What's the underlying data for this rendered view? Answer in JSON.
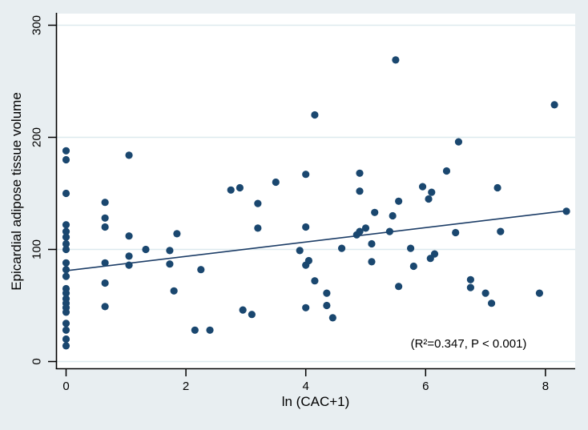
{
  "chart_data": {
    "type": "scatter",
    "title": "",
    "xlabel": "ln (CAC+1)",
    "ylabel": "Epicardial adipose tissue volume",
    "annotation": "(R²=0.347, P < 0.001)",
    "xticks": [
      0,
      2,
      4,
      6,
      8
    ],
    "yticks": [
      0,
      100,
      200,
      300
    ],
    "xlim": [
      -0.15,
      8.5
    ],
    "ylim": [
      -7,
      310
    ],
    "grid": "horizontal",
    "legend": "none",
    "colors": {
      "marker": "#1a476f",
      "fit_line": "#1b3c66",
      "grid": "#dde9ee",
      "axis": "#000000",
      "plot_bg": "#ffffff",
      "outer_bg": "#e8eef1",
      "text": "#000000"
    },
    "fit_line": {
      "x1": 0,
      "y1": 81,
      "x2": 8.35,
      "y2": 134.5
    },
    "points": [
      [
        0,
        188
      ],
      [
        0,
        180
      ],
      [
        0,
        150
      ],
      [
        0,
        122
      ],
      [
        0,
        116
      ],
      [
        0,
        111
      ],
      [
        0,
        105
      ],
      [
        0,
        100
      ],
      [
        0,
        88
      ],
      [
        0,
        82
      ],
      [
        0,
        76
      ],
      [
        0,
        65
      ],
      [
        0,
        61
      ],
      [
        0,
        56
      ],
      [
        0,
        52
      ],
      [
        0,
        48
      ],
      [
        0,
        44
      ],
      [
        0,
        34
      ],
      [
        0,
        28
      ],
      [
        0,
        20
      ],
      [
        0,
        14
      ],
      [
        0.65,
        142
      ],
      [
        0.65,
        128
      ],
      [
        0.65,
        120
      ],
      [
        0.65,
        88
      ],
      [
        0.65,
        70
      ],
      [
        0.65,
        49
      ],
      [
        1.05,
        184
      ],
      [
        1.05,
        112
      ],
      [
        1.05,
        94
      ],
      [
        1.05,
        86
      ],
      [
        1.33,
        100
      ],
      [
        1.73,
        99
      ],
      [
        1.73,
        87
      ],
      [
        1.85,
        114
      ],
      [
        1.8,
        63
      ],
      [
        2.25,
        82
      ],
      [
        2.15,
        28
      ],
      [
        2.4,
        28
      ],
      [
        2.75,
        153
      ],
      [
        2.9,
        155
      ],
      [
        2.95,
        46
      ],
      [
        3.1,
        42
      ],
      [
        3.2,
        141
      ],
      [
        3.2,
        119
      ],
      [
        3.5,
        160
      ],
      [
        3.9,
        99
      ],
      [
        4.0,
        167
      ],
      [
        4.0,
        120
      ],
      [
        4.0,
        86
      ],
      [
        4.05,
        90
      ],
      [
        4.0,
        48
      ],
      [
        4.15,
        220
      ],
      [
        4.15,
        72
      ],
      [
        4.35,
        61
      ],
      [
        4.35,
        50
      ],
      [
        4.45,
        39
      ],
      [
        4.6,
        101
      ],
      [
        4.85,
        113
      ],
      [
        4.9,
        116
      ],
      [
        5.0,
        119
      ],
      [
        4.9,
        168
      ],
      [
        4.9,
        152
      ],
      [
        5.1,
        105
      ],
      [
        5.1,
        89
      ],
      [
        5.15,
        133
      ],
      [
        5.4,
        116
      ],
      [
        5.45,
        130
      ],
      [
        5.5,
        269
      ],
      [
        5.55,
        143
      ],
      [
        5.55,
        67
      ],
      [
        5.75,
        101
      ],
      [
        5.8,
        85
      ],
      [
        5.95,
        156
      ],
      [
        6.05,
        145
      ],
      [
        6.1,
        151
      ],
      [
        6.08,
        92
      ],
      [
        6.15,
        96
      ],
      [
        6.35,
        170
      ],
      [
        6.5,
        115
      ],
      [
        6.55,
        196
      ],
      [
        6.75,
        73
      ],
      [
        6.75,
        66
      ],
      [
        7.0,
        61
      ],
      [
        7.1,
        52
      ],
      [
        7.2,
        155
      ],
      [
        7.25,
        116
      ],
      [
        7.9,
        61
      ],
      [
        8.15,
        229
      ],
      [
        8.35,
        134
      ]
    ]
  }
}
